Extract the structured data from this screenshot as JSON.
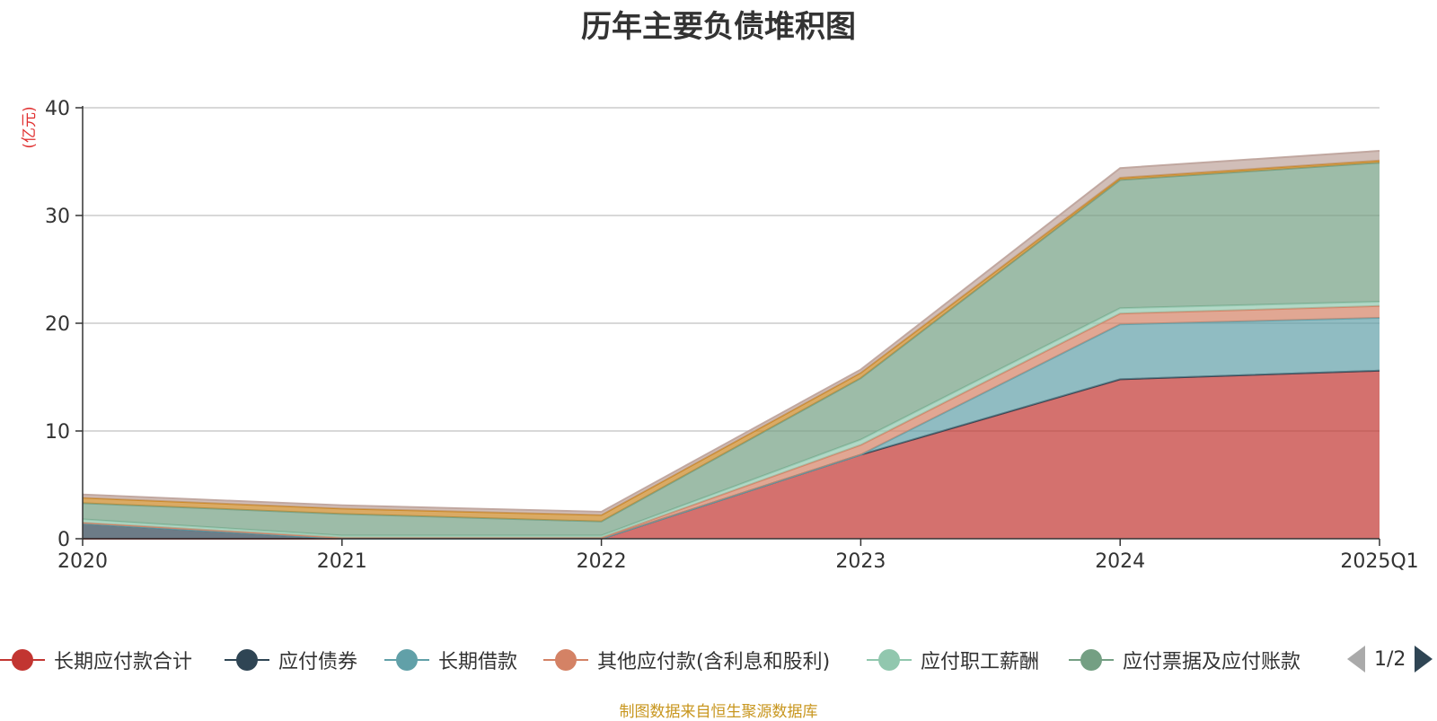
{
  "chart_data": {
    "type": "area",
    "stacked": true,
    "title": "历年主要负债堆积图",
    "unit_label": "(亿元)",
    "categories": [
      "2020",
      "2021",
      "2022",
      "2023",
      "2024",
      "2025Q1"
    ],
    "ylim": [
      0,
      40
    ],
    "yticks": [
      0,
      10,
      20,
      30,
      40
    ],
    "grid": true,
    "series": [
      {
        "name": "长期应付款合计",
        "color": "#c23531",
        "values": [
          0,
          0,
          0,
          7.8,
          14.8,
          15.6
        ]
      },
      {
        "name": "应付债券",
        "color": "#2f4554",
        "values": [
          1.4,
          0,
          0,
          0,
          0,
          0
        ]
      },
      {
        "name": "长期借款",
        "color": "#61a0a8",
        "values": [
          0,
          0,
          0,
          0,
          5.1,
          4.9
        ]
      },
      {
        "name": "其他应付款(含利息和股利)",
        "color": "#d48265",
        "values": [
          0.1,
          0.1,
          0.1,
          0.9,
          1.0,
          1.1
        ]
      },
      {
        "name": "应付职工薪酬",
        "color": "#91c7ae",
        "values": [
          0.3,
          0.2,
          0.2,
          0.5,
          0.5,
          0.4
        ]
      },
      {
        "name": "应付票据及应付账款",
        "color": "#749f83",
        "values": [
          1.5,
          2.0,
          1.3,
          5.7,
          11.9,
          12.9
        ]
      },
      {
        "name": "",
        "color": "#ca8622",
        "values": [
          0.5,
          0.5,
          0.6,
          0.5,
          0.2,
          0.2
        ]
      },
      {
        "name": "",
        "color": "#bda29a",
        "values": [
          0.3,
          0.3,
          0.3,
          0.3,
          0.9,
          0.9
        ]
      }
    ]
  },
  "legend": {
    "page": "1/2"
  },
  "source_note": "制图数据来自恒生聚源数据库"
}
